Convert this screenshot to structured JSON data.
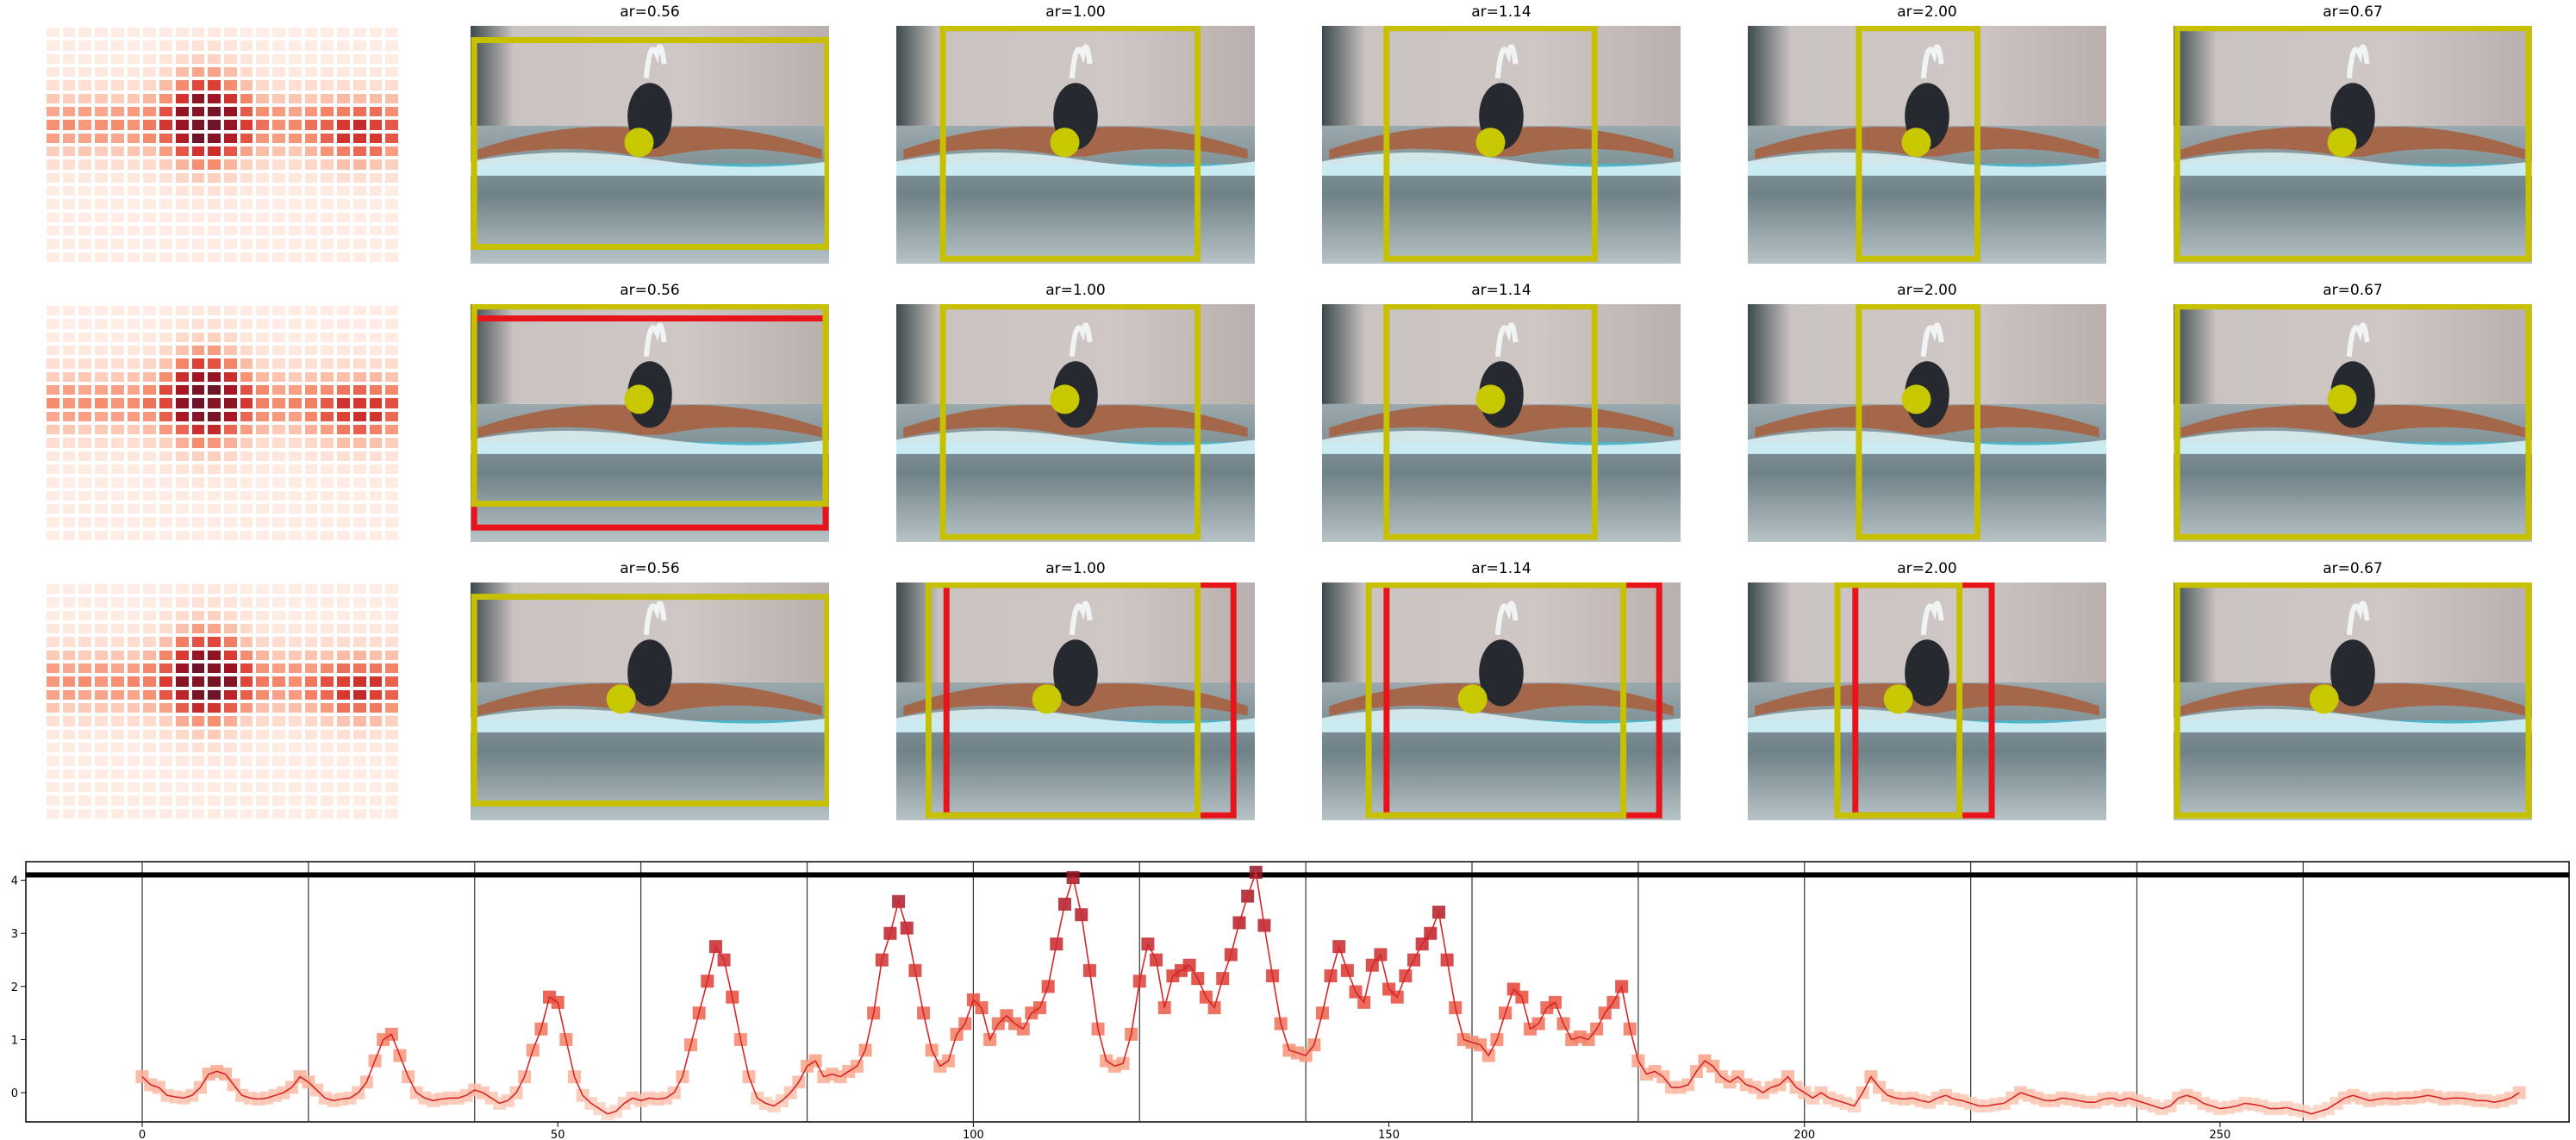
{
  "colors": {
    "box_yellow": "#c6c000",
    "box_red": "#e8141c",
    "dot_yellow": "#c8c800",
    "line_red": "#d62728",
    "tile_light": "#fde0d2",
    "tile_mid": "#f4866a",
    "tile_dark": "#b01e23",
    "tile_darkest": "#7f1d2a"
  },
  "panels": [
    {
      "row": 0,
      "titles": [
        "ar=0.56",
        "ar=1.00",
        "ar=1.14",
        "ar=2.00",
        "ar=0.67"
      ]
    },
    {
      "row": 1,
      "titles": [
        "ar=0.56",
        "ar=1.00",
        "ar=1.14",
        "ar=2.00",
        "ar=0.67"
      ]
    },
    {
      "row": 2,
      "titles": [
        "ar=0.56",
        "ar=1.00",
        "ar=1.14",
        "ar=2.00",
        "ar=0.67"
      ]
    }
  ],
  "chart_data": {
    "type": "line",
    "title": "",
    "xlabel": "",
    "ylabel": "",
    "xlim": [
      -14,
      292
    ],
    "ylim": [
      -0.55,
      4.35
    ],
    "xticks": [
      0,
      50,
      100,
      150,
      200,
      250
    ],
    "yticks": [
      0,
      1,
      2,
      3,
      4
    ],
    "vlines": [
      0,
      20,
      40,
      60,
      80,
      100,
      120,
      140,
      160,
      180,
      200,
      220,
      240,
      260
    ],
    "hline": 4.1,
    "grid": false,
    "series": [
      {
        "values": [
          0.3,
          0.15,
          0.1,
          -0.05,
          -0.08,
          -0.1,
          -0.05,
          0.1,
          0.35,
          0.4,
          0.35,
          0.15,
          -0.05,
          -0.1,
          -0.12,
          -0.1,
          -0.05,
          0.0,
          0.1,
          0.3,
          0.2,
          0.05,
          -0.1,
          -0.15,
          -0.12,
          -0.1,
          0.0,
          0.2,
          0.6,
          1.0,
          1.1,
          0.7,
          0.3,
          0.0,
          -0.1,
          -0.15,
          -0.12,
          -0.1,
          -0.1,
          -0.05,
          0.05,
          0.0,
          -0.1,
          -0.2,
          -0.15,
          0.0,
          0.3,
          0.8,
          1.2,
          1.8,
          1.7,
          1.0,
          0.3,
          -0.05,
          -0.2,
          -0.3,
          -0.4,
          -0.35,
          -0.2,
          -0.1,
          -0.15,
          -0.1,
          -0.12,
          -0.1,
          0.0,
          0.3,
          0.9,
          1.5,
          2.1,
          2.75,
          2.5,
          1.8,
          1.0,
          0.3,
          -0.1,
          -0.2,
          -0.25,
          -0.15,
          0.0,
          0.2,
          0.5,
          0.6,
          0.3,
          0.35,
          0.3,
          0.4,
          0.5,
          0.8,
          1.5,
          2.5,
          3.0,
          3.6,
          3.1,
          2.3,
          1.5,
          0.8,
          0.5,
          0.6,
          1.1,
          1.3,
          1.75,
          1.6,
          1.0,
          1.3,
          1.45,
          1.3,
          1.2,
          1.5,
          1.6,
          2.0,
          2.8,
          3.55,
          4.05,
          3.35,
          2.3,
          1.2,
          0.6,
          0.5,
          0.55,
          1.1,
          2.1,
          2.8,
          2.5,
          1.6,
          2.2,
          2.3,
          2.4,
          2.15,
          1.8,
          1.6,
          2.15,
          2.6,
          3.2,
          3.7,
          4.15,
          3.15,
          2.2,
          1.3,
          0.8,
          0.75,
          0.7,
          0.9,
          1.5,
          2.2,
          2.75,
          2.3,
          1.9,
          1.7,
          2.4,
          2.6,
          1.95,
          1.8,
          2.2,
          2.5,
          2.8,
          3.0,
          3.4,
          2.5,
          1.6,
          1.0,
          0.95,
          0.9,
          0.7,
          1.0,
          1.5,
          1.95,
          1.8,
          1.2,
          1.3,
          1.6,
          1.7,
          1.3,
          1.0,
          1.05,
          1.0,
          1.2,
          1.5,
          1.7,
          2.0,
          1.2,
          0.6,
          0.35,
          0.4,
          0.3,
          0.1,
          0.1,
          0.15,
          0.4,
          0.6,
          0.5,
          0.3,
          0.2,
          0.3,
          0.15,
          0.1,
          0.0,
          0.1,
          0.15,
          0.3,
          0.1,
          0.0,
          -0.1,
          0.0,
          -0.1,
          -0.15,
          -0.2,
          -0.25,
          0.0,
          0.3,
          0.1,
          -0.05,
          -0.1,
          -0.12,
          -0.1,
          -0.15,
          -0.18,
          -0.1,
          -0.05,
          -0.12,
          -0.15,
          -0.2,
          -0.25,
          -0.25,
          -0.22,
          -0.2,
          -0.1,
          0.0,
          -0.05,
          -0.1,
          -0.15,
          -0.15,
          -0.1,
          -0.12,
          -0.15,
          -0.18,
          -0.18,
          -0.12,
          -0.1,
          -0.15,
          -0.1,
          -0.15,
          -0.2,
          -0.25,
          -0.3,
          -0.25,
          -0.1,
          -0.05,
          -0.1,
          -0.2,
          -0.25,
          -0.3,
          -0.28,
          -0.25,
          -0.2,
          -0.22,
          -0.25,
          -0.3,
          -0.3,
          -0.28,
          -0.32,
          -0.35,
          -0.4,
          -0.35,
          -0.3,
          -0.2,
          -0.1,
          -0.05,
          -0.1,
          -0.15,
          -0.12,
          -0.1,
          -0.12,
          -0.1,
          -0.1,
          -0.08,
          -0.05,
          -0.08,
          -0.12,
          -0.1,
          -0.1,
          -0.12,
          -0.15,
          -0.15,
          -0.18,
          -0.15,
          -0.1,
          0.0
        ]
      }
    ]
  }
}
